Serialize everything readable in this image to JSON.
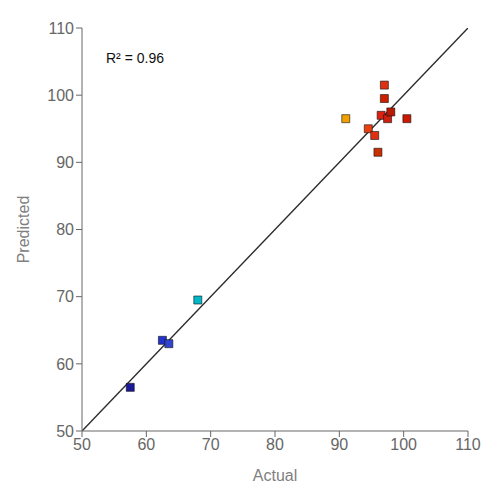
{
  "chart_data": {
    "type": "scatter",
    "xlabel": "Actual",
    "ylabel": "Predicted",
    "annotation": "R² = 0.96",
    "x": [
      57.5,
      62.5,
      63.5,
      68.0,
      91.0,
      94.5,
      95.5,
      96.0,
      96.5,
      97.0,
      97.5,
      98.0,
      97.0,
      100.5
    ],
    "values": [
      56.5,
      63.5,
      63.0,
      69.5,
      96.5,
      95.0,
      94.0,
      91.5,
      97.0,
      99.5,
      96.5,
      97.5,
      101.5,
      96.5
    ],
    "colors": [
      "#1a1a99",
      "#2233cc",
      "#3344cc",
      "#00b8c8",
      "#f0a000",
      "#e84010",
      "#e03010",
      "#c83000",
      "#dd2010",
      "#cc2000",
      "#cc2010",
      "#bb1800",
      "#dd3010",
      "#cc1800"
    ],
    "marker": "square",
    "line": {
      "x": [
        50,
        110
      ],
      "y": [
        50,
        110
      ],
      "color": "#2b2b2b"
    },
    "xlim": [
      50,
      110
    ],
    "ylim": [
      50,
      110
    ],
    "xticks": [
      50,
      60,
      70,
      80,
      90,
      100,
      110
    ],
    "yticks": [
      50,
      60,
      70,
      80,
      90,
      100,
      110
    ],
    "grid": false
  }
}
